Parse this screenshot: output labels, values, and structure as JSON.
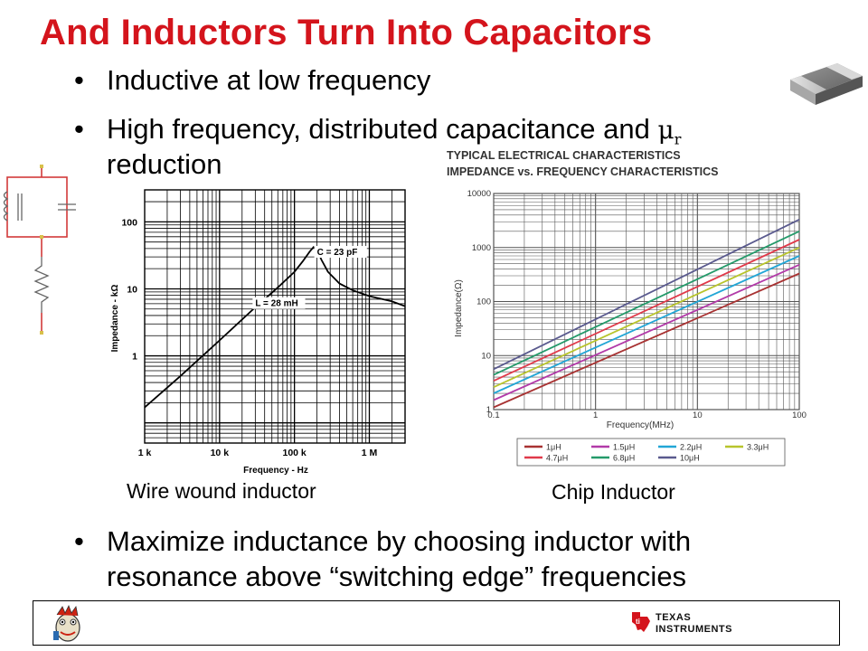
{
  "slide": {
    "title": "And Inductors Turn Into Capacitors",
    "bullets": [
      "Inductive at low frequency",
      "High frequency, distributed capacitance and",
      "reduction",
      "Maximize inductance by choosing inductor with",
      "resonance above “switching edge” frequencies"
    ],
    "mu_symbol": "μ",
    "mu_sub": "r",
    "bullet_glyph": "•",
    "caption_left": "Wire wound inductor",
    "caption_right": "Chip Inductor",
    "footer_logo": "TEXAS INSTRUMENTS",
    "footer_logo_line1": "TEXAS",
    "footer_logo_line2": "INSTRUMENTS",
    "accent_color": "#d4141c"
  },
  "chart_data": [
    {
      "type": "line",
      "title": "",
      "xlabel": "Frequency - Hz",
      "ylabel": "Impedance - kΩ",
      "x_scale": "log",
      "y_scale": "log",
      "xlim": [
        1000,
        3000000
      ],
      "ylim": [
        0.05,
        300
      ],
      "x_ticks": [
        {
          "v": 1000,
          "label": "1 k"
        },
        {
          "v": 10000,
          "label": "10 k"
        },
        {
          "v": 100000,
          "label": "100 k"
        },
        {
          "v": 1000000,
          "label": "1 M"
        }
      ],
      "y_ticks": [
        {
          "v": 1,
          "label": "1"
        },
        {
          "v": 10,
          "label": "10"
        },
        {
          "v": 100,
          "label": "100"
        }
      ],
      "grid": true,
      "annotations": [
        {
          "text": "L = 28 mH",
          "x": 30000,
          "y": 5.5
        },
        {
          "text": "C = 23 pF",
          "x": 200000,
          "y": 32
        }
      ],
      "series": [
        {
          "x": [
            1000,
            3000,
            10000,
            30000,
            60000,
            100000,
            130000,
            160000,
            180000,
            200000,
            230000,
            280000,
            400000,
            600000,
            1000000,
            2000000,
            3000000
          ],
          "y": [
            0.17,
            0.5,
            1.7,
            5.3,
            10.5,
            18,
            26,
            36,
            42,
            38,
            27,
            18,
            12,
            9.5,
            7.8,
            6.5,
            5.5
          ]
        }
      ]
    },
    {
      "type": "line",
      "title": "TYPICAL ELECTRICAL CHARACTERISTICS",
      "subtitle": "IMPEDANCE vs. FREQUENCY CHARACTERISTICS",
      "xlabel": "Frequency(MHz)",
      "ylabel": "Impedance(Ω)",
      "x_scale": "log",
      "y_scale": "log",
      "xlim": [
        0.1,
        100
      ],
      "ylim": [
        1,
        10000
      ],
      "x_ticks": [
        {
          "v": 0.1,
          "label": "0.1"
        },
        {
          "v": 1,
          "label": "1"
        },
        {
          "v": 10,
          "label": "10"
        },
        {
          "v": 100,
          "label": "100"
        }
      ],
      "y_ticks": [
        {
          "v": 1,
          "label": "1"
        },
        {
          "v": 10,
          "label": "10"
        },
        {
          "v": 100,
          "label": "100"
        },
        {
          "v": 1000,
          "label": "1000"
        },
        {
          "v": 10000,
          "label": "10000"
        }
      ],
      "grid": true,
      "legend_position": "bottom",
      "series": [
        {
          "name": "1μH",
          "color": "#a83232",
          "x": [
            0.1,
            100
          ],
          "y": [
            1.1,
            330
          ]
        },
        {
          "name": "1.5μH",
          "color": "#b23aa8",
          "x": [
            0.1,
            100
          ],
          "y": [
            1.5,
            480
          ]
        },
        {
          "name": "2.2μH",
          "color": "#22a6d6",
          "x": [
            0.1,
            100
          ],
          "y": [
            2.0,
            700
          ]
        },
        {
          "name": "3.3μH",
          "color": "#b8c42c",
          "x": [
            0.1,
            100
          ],
          "y": [
            2.6,
            1000
          ]
        },
        {
          "name": "4.7μH",
          "color": "#e03a4a",
          "x": [
            0.1,
            100
          ],
          "y": [
            3.4,
            1400
          ]
        },
        {
          "name": "6.8μH",
          "color": "#249a6a",
          "x": [
            0.1,
            100
          ],
          "y": [
            4.4,
            2000
          ]
        },
        {
          "name": "10μH",
          "color": "#5a5a8e",
          "x": [
            0.1,
            100
          ],
          "y": [
            5.6,
            3300
          ]
        }
      ]
    }
  ]
}
